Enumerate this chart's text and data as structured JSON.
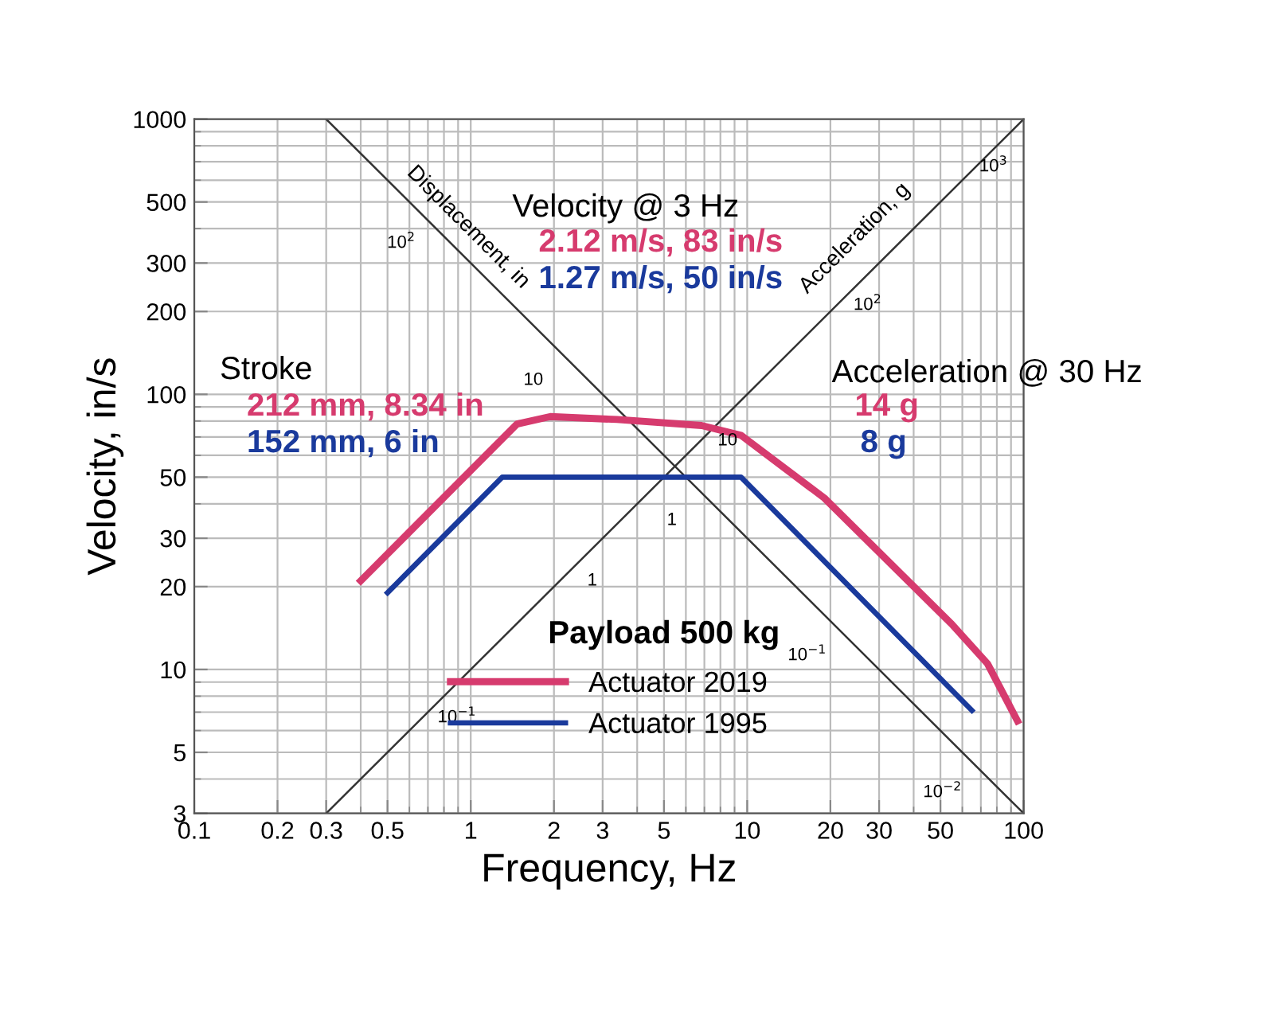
{
  "chart_data": {
    "type": "line",
    "xlabel": "Frequency, Hz",
    "ylabel": "Velocity, in/s",
    "log": "xy",
    "grid": true,
    "legend": "bottom",
    "xlim": [
      0.1,
      100
    ],
    "ylim": [
      3,
      1000
    ],
    "xticks": [
      0.1,
      0.2,
      0.3,
      0.5,
      1,
      2,
      3,
      5,
      10,
      20,
      30,
      50,
      100
    ],
    "yticks": [
      3,
      5,
      10,
      20,
      30,
      50,
      100,
      200,
      300,
      500,
      1000
    ],
    "series": [
      {
        "name": "Actuator 2019",
        "color": "#d63b6e",
        "x": [
          0.4,
          1.47,
          1.94,
          3.38,
          6.84,
          9.5,
          19,
          55,
          74,
          95
        ],
        "values": [
          21,
          78,
          83,
          81,
          77,
          71,
          42,
          14.6,
          10.5,
          6.5
        ]
      },
      {
        "name": "Actuator 1995",
        "color": "#1a3a9c",
        "x": [
          0.5,
          1.3,
          9.5,
          65
        ],
        "values": [
          19,
          50,
          50,
          7.1
        ]
      },
      {
        "color": "#333333",
        "x": [
          0.3,
          100
        ],
        "values": [
          1000,
          3
        ]
      },
      {
        "color": "#333333",
        "x": [
          0.3,
          100
        ],
        "values": [
          3,
          1000
        ]
      }
    ],
    "annotations": [
      "Displacement, in",
      "Acceleration, g",
      "10$^{2}$",
      "10",
      "1",
      "10$^{−1}$",
      "10$^{−2}$",
      "10$^{3}$",
      "10$^{2}$",
      "10",
      "1",
      "10$^{−1}$",
      "Stroke",
      "212 mm, 8.34 in",
      "152 mm, 6 in",
      "Velocity @ 3 Hz",
      "2.12 m/s, 83 in/s",
      "1.27 m/s, 50 in/s",
      "Acceleration @ 30 Hz",
      "14 g",
      "8 g",
      "Payload 500 kg"
    ]
  }
}
